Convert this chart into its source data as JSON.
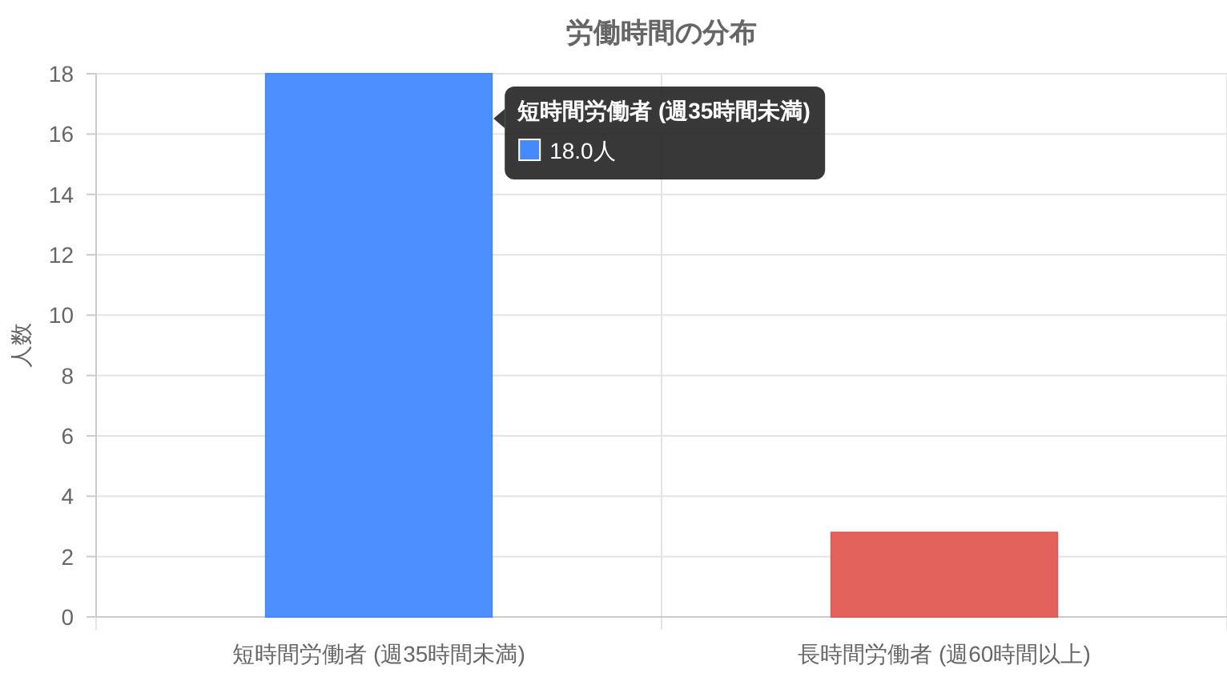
{
  "chart_data": {
    "type": "bar",
    "title": "労働時間の分布",
    "ylabel": "人数",
    "categories": [
      "短時間労働者 (週35時間未満)",
      "長時間労働者 (週60時間以上)"
    ],
    "values": [
      18,
      2.8
    ],
    "colors": [
      "#4589ff",
      "#e15a53"
    ],
    "ylim": [
      0,
      18
    ],
    "yticks": [
      0,
      2,
      4,
      6,
      8,
      10,
      12,
      14,
      16,
      18
    ],
    "grid": true,
    "annotations": [
      "短時間労働者 (週35時間未満)",
      "18.0人"
    ]
  }
}
